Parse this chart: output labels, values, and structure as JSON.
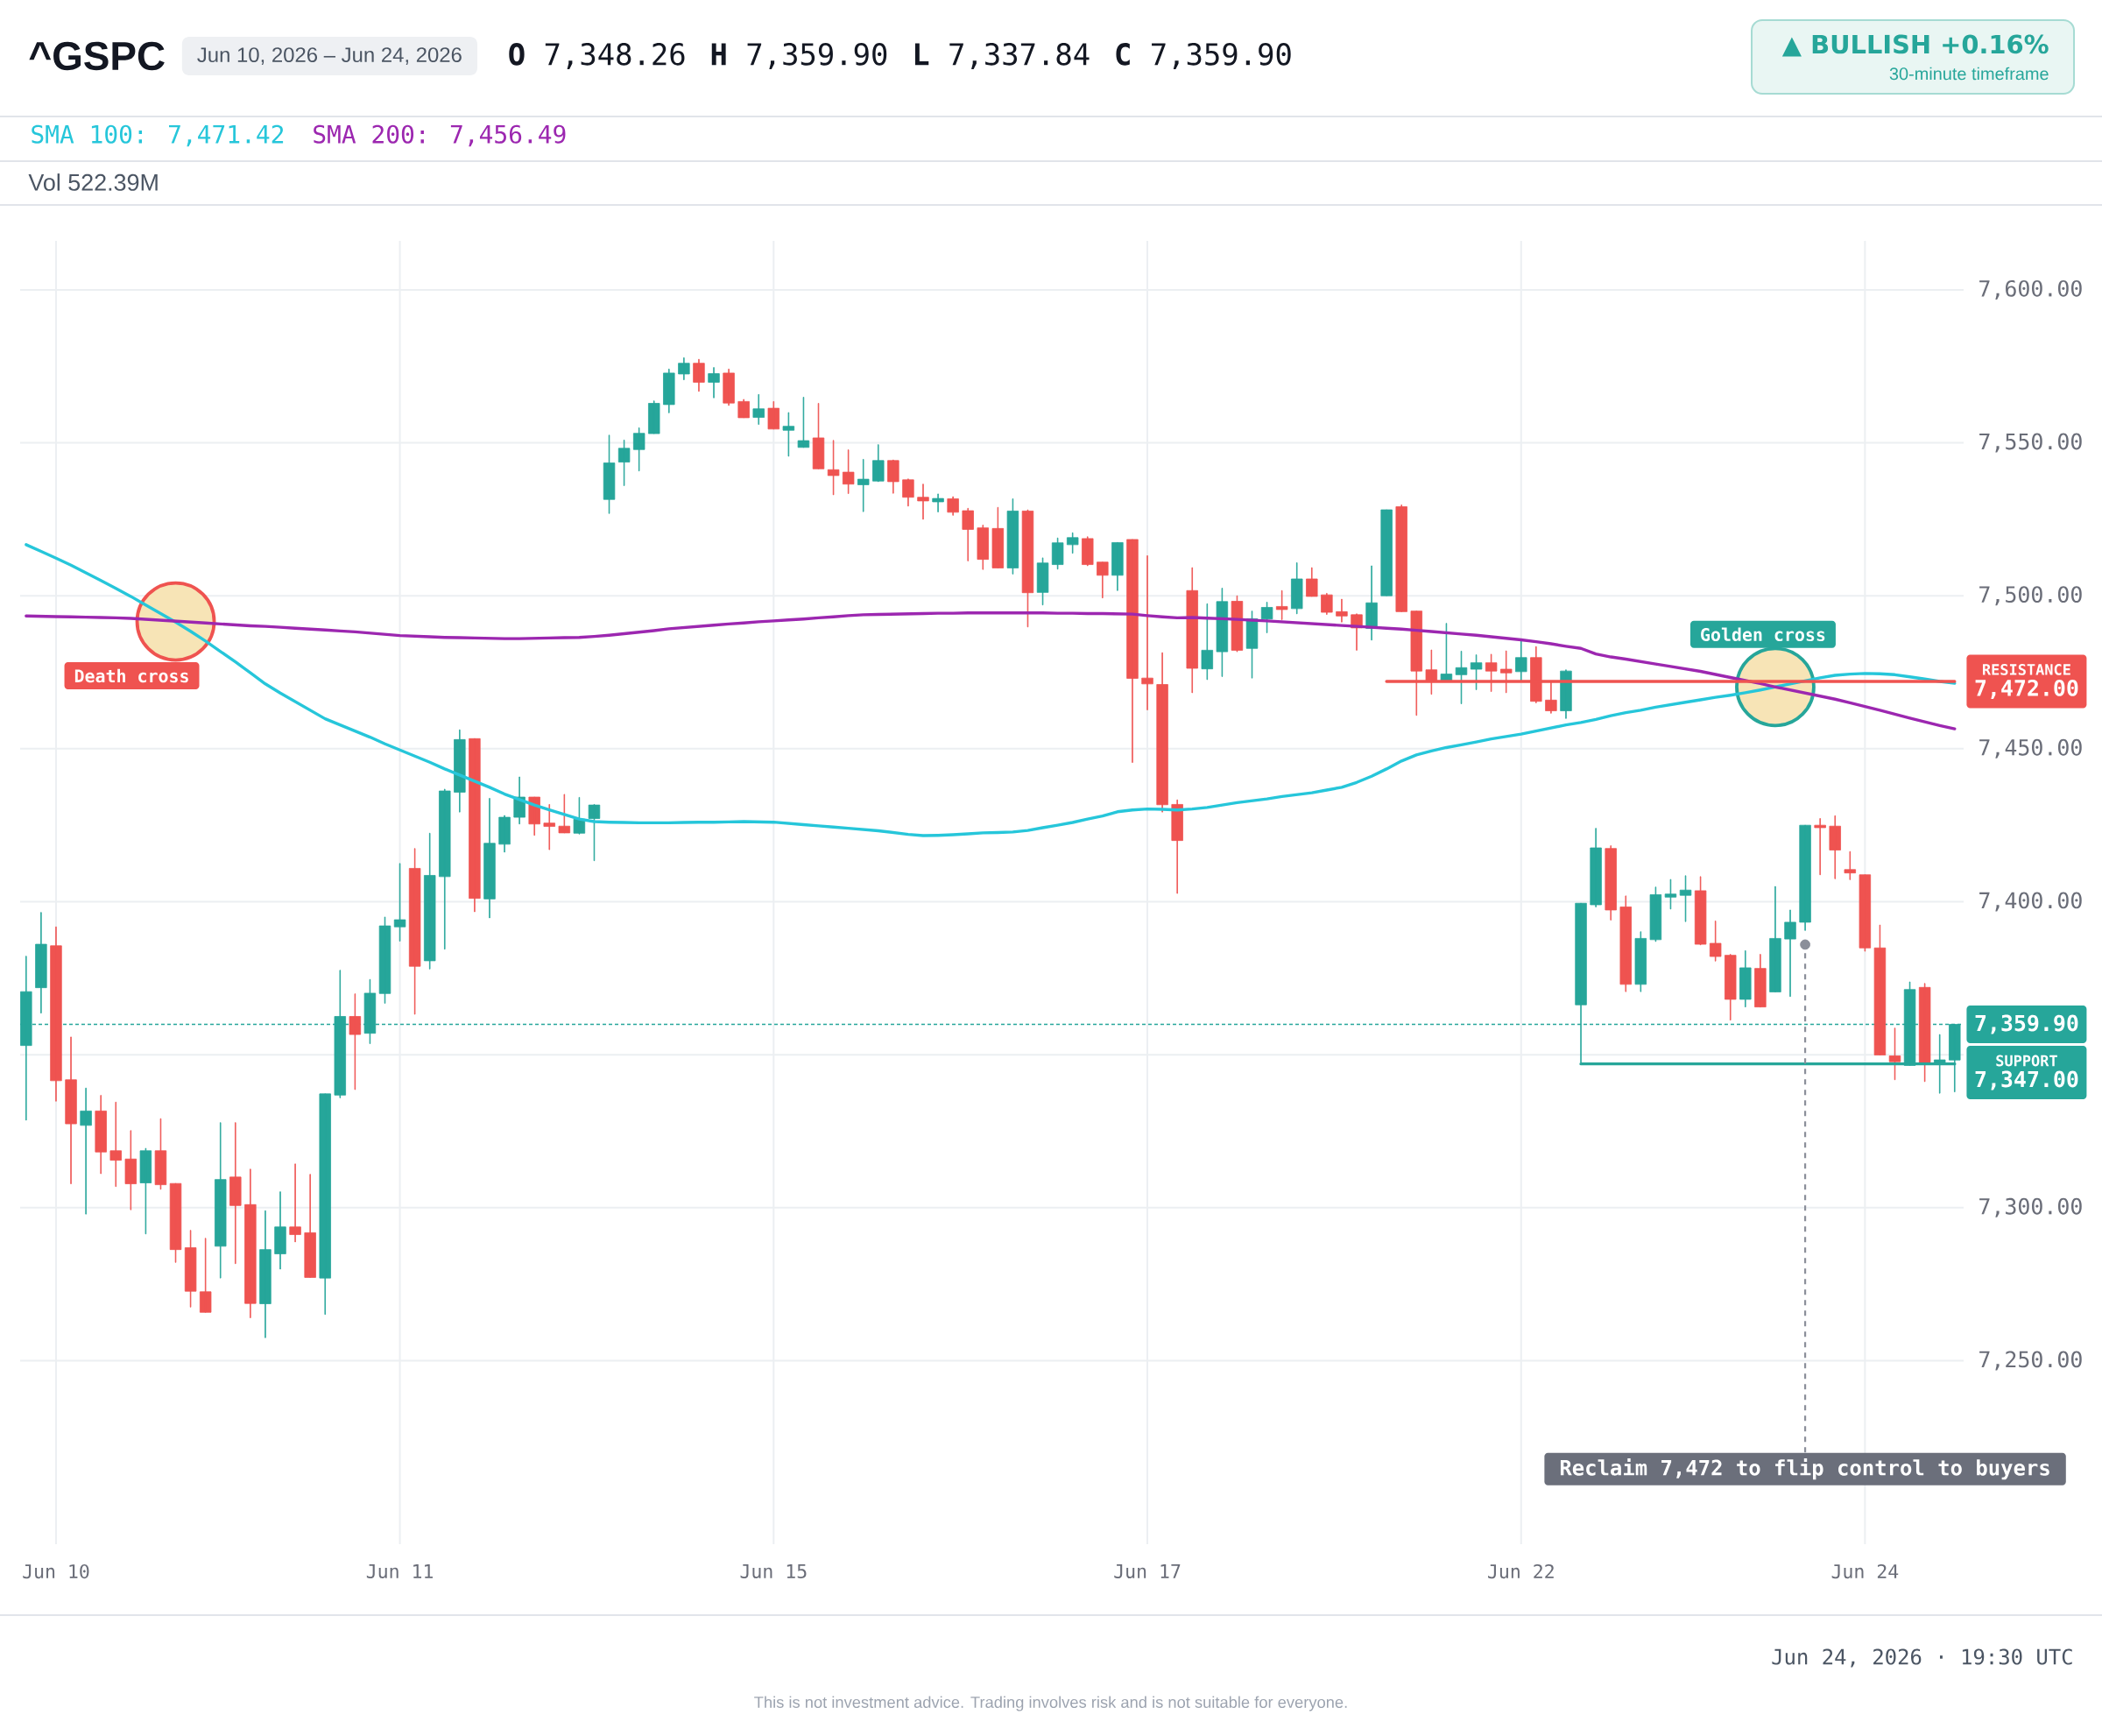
{
  "chart_data": {
    "type": "candlestick",
    "title": "^GSPC",
    "subtitle": "Jun 10, 2026 – Jun 24, 2026",
    "annotations": [
      "**O** 7,348.26",
      "**H** 7,359.90",
      "**L** 7,337.84",
      "**C** 7,359.90",
      "▲ BULLISH +0.16%",
      "30-minute timeframe",
      "Vol 522.39M",
      {
        "text": "Reclaim 7,472 to flip control to buyers",
        "y": 7386
      },
      "Jun 24, 2026 · 19:30 UTC",
      "This is not investment advice. Trading involves risk and is not suitable for everyone."
    ],
    "categories": [
      null,
      null,
      "Jun 10",
      null,
      null,
      null,
      null,
      null,
      null,
      null,
      null,
      null,
      null,
      null,
      null,
      null,
      null,
      null,
      null,
      null,
      null,
      null,
      null,
      null,
      null,
      "Jun 11",
      null,
      null,
      null,
      null,
      null,
      null,
      null,
      null,
      null,
      null,
      null,
      null,
      null,
      null,
      null,
      null,
      null,
      null,
      null,
      null,
      null,
      null,
      null,
      null,
      "Jun 15",
      null,
      null,
      null,
      null,
      null,
      null,
      null,
      null,
      null,
      null,
      null,
      null,
      null,
      null,
      null,
      null,
      null,
      null,
      null,
      null,
      null,
      null,
      null,
      null,
      "Jun 17",
      null,
      null,
      null,
      null,
      null,
      null,
      null,
      null,
      null,
      null,
      null,
      null,
      null,
      null,
      null,
      null,
      null,
      null,
      null,
      null,
      null,
      null,
      null,
      null,
      "Jun 22",
      null,
      null,
      null,
      null,
      null,
      null,
      null,
      null,
      null,
      null,
      null,
      null,
      null,
      null,
      null,
      null,
      null,
      null,
      null,
      null,
      null,
      null,
      "Jun 24",
      null,
      null,
      null,
      null,
      null,
      null
    ],
    "ylim": [
      7190,
      7616
    ],
    "yticks": [
      {
        "value": 7250,
        "label": "7,250.00"
      },
      {
        "value": 7300,
        "label": "7,300.00"
      },
      {
        "value": 7350,
        "label": null
      },
      {
        "value": 7400,
        "label": "7,400.00"
      },
      {
        "value": 7450,
        "label": "7,450.00"
      },
      {
        "value": 7500,
        "label": "7,500.00"
      },
      {
        "value": 7550,
        "label": "7,550.00"
      },
      {
        "value": 7600,
        "label": "7,600.00"
      }
    ],
    "grid": true,
    "legend": "top left",
    "ref_lines": [
      {
        "axis": "y",
        "value": 7359.9,
        "label": "7,359.90",
        "color": "#26a69a",
        "line_style": "dashed"
      }
    ],
    "series": [
      {
        "ohlc": [
          [
            7353.0,
            7382.2,
            7328.6,
            7370.6
          ],
          [
            7371.9,
            7396.5,
            7363.6,
            7386.1
          ],
          [
            7385.6,
            7391.8,
            7334.8,
            7341.5
          ],
          [
            7341.8,
            7355.8,
            7307.8,
            7327.4
          ],
          [
            7326.9,
            7339.1,
            7297.9,
            7331.6
          ],
          [
            7331.6,
            7336.7,
            7311.1,
            7318.2
          ],
          [
            7318.6,
            7334.5,
            7306.9,
            7315.5
          ],
          [
            7315.9,
            7325.2,
            7299.3,
            7307.8
          ],
          [
            7308.1,
            7319.4,
            7291.4,
            7318.6
          ],
          [
            7318.6,
            7329.1,
            7306.0,
            7307.5
          ],
          [
            7307.9,
            7307.9,
            7282.1,
            7286.3
          ],
          [
            7286.9,
            7292.6,
            7267.5,
            7272.7
          ],
          [
            7272.5,
            7290.0,
            7265.8,
            7265.8
          ],
          [
            7287.4,
            7327.8,
            7277.0,
            7309.2
          ],
          [
            7310.0,
            7327.8,
            7281.7,
            7300.7
          ],
          [
            7301.0,
            7312.6,
            7264.0,
            7268.7
          ],
          [
            7268.6,
            7299.0,
            7257.5,
            7286.3
          ],
          [
            7284.9,
            7305.2,
            7279.9,
            7293.7
          ],
          [
            7293.7,
            7314.3,
            7288.8,
            7291.2
          ],
          [
            7291.8,
            7310.9,
            7277.2,
            7277.2
          ],
          [
            7277.0,
            7337.2,
            7265.1,
            7337.2
          ],
          [
            7336.8,
            7377.6,
            7335.9,
            7362.5
          ],
          [
            7362.5,
            7369.9,
            7338.6,
            7356.6
          ],
          [
            7357.0,
            7374.6,
            7353.6,
            7370.1
          ],
          [
            7370.0,
            7395.0,
            7366.8,
            7392.1
          ],
          [
            7391.8,
            7412.5,
            7387.1,
            7394.1
          ],
          [
            7410.9,
            7417.4,
            7363.2,
            7378.9
          ],
          [
            7380.7,
            7422.4,
            7378.0,
            7408.6
          ],
          [
            7408.2,
            7436.8,
            7384.5,
            7436.2
          ],
          [
            7435.8,
            7456.2,
            7429.3,
            7453.0
          ],
          [
            7453.3,
            7453.3,
            7396.7,
            7401.1
          ],
          [
            7400.9,
            7433.8,
            7394.7,
            7419.1
          ],
          [
            7418.8,
            7428.2,
            7416.2,
            7427.6
          ],
          [
            7427.6,
            7440.8,
            7425.4,
            7434.2
          ],
          [
            7434.2,
            7434.2,
            7421.7,
            7425.4
          ],
          [
            7425.7,
            7431.8,
            7417.0,
            7424.6
          ],
          [
            7424.7,
            7435.1,
            7422.5,
            7422.5
          ],
          [
            7422.4,
            7434.1,
            7422.1,
            7427.0
          ],
          [
            7427.2,
            7431.8,
            7413.4,
            7431.6
          ],
          [
            7531.5,
            7552.5,
            7526.9,
            7543.4
          ],
          [
            7543.7,
            7550.9,
            7536.0,
            7548.2
          ],
          [
            7547.8,
            7554.9,
            7540.8,
            7553.1
          ],
          [
            7553.0,
            7563.7,
            7553.0,
            7562.9
          ],
          [
            7562.5,
            7574.1,
            7559.8,
            7572.8
          ],
          [
            7572.5,
            7577.8,
            7570.6,
            7576.0
          ],
          [
            7576.0,
            7577.3,
            7566.8,
            7569.8
          ],
          [
            7569.8,
            7574.6,
            7564.7,
            7572.6
          ],
          [
            7572.8,
            7574.1,
            7562.2,
            7563.0
          ],
          [
            7563.5,
            7564.2,
            7558.2,
            7558.2
          ],
          [
            7558.3,
            7565.8,
            7556.0,
            7561.1
          ],
          [
            7561.3,
            7563.5,
            7554.5,
            7554.5
          ],
          [
            7554.1,
            7559.9,
            7545.6,
            7555.4
          ],
          [
            7548.5,
            7564.9,
            7548.5,
            7550.7
          ],
          [
            7551.6,
            7562.9,
            7541.5,
            7541.5
          ],
          [
            7541.2,
            7550.8,
            7533.0,
            7539.3
          ],
          [
            7540.4,
            7547.7,
            7533.4,
            7536.5
          ],
          [
            7536.3,
            7544.6,
            7527.5,
            7538.1
          ],
          [
            7537.5,
            7549.4,
            7537.3,
            7544.2
          ],
          [
            7544.2,
            7544.4,
            7533.5,
            7537.3
          ],
          [
            7537.9,
            7538.2,
            7529.3,
            7532.2
          ],
          [
            7532.2,
            7536.5,
            7525.0,
            7531.0
          ],
          [
            7530.7,
            7533.3,
            7527.4,
            7531.8
          ],
          [
            7531.7,
            7532.4,
            7526.3,
            7527.3
          ],
          [
            7527.8,
            7528.6,
            7511.4,
            7521.7
          ],
          [
            7522.2,
            7523.1,
            7508.6,
            7511.9
          ],
          [
            7522.0,
            7528.9,
            7509.1,
            7509.1
          ],
          [
            7509.1,
            7531.7,
            7507.1,
            7527.7
          ],
          [
            7527.7,
            7528.1,
            7489.8,
            7501.0
          ],
          [
            7501.1,
            7512.4,
            7497.0,
            7510.7
          ],
          [
            7510.2,
            7518.9,
            7508.7,
            7517.3
          ],
          [
            7516.7,
            7520.6,
            7513.9,
            7519.0
          ],
          [
            7518.7,
            7519.3,
            7509.8,
            7510.2
          ],
          [
            7511.0,
            7511.0,
            7499.3,
            7506.7
          ],
          [
            7506.7,
            7517.4,
            7501.7,
            7517.4
          ],
          [
            7518.4,
            7518.4,
            7445.5,
            7473.0
          ],
          [
            7473.1,
            7513.1,
            7462.7,
            7471.2
          ],
          [
            7471.0,
            7481.4,
            7429.3,
            7431.7
          ],
          [
            7431.8,
            7433.3,
            7402.7,
            7420.0
          ],
          [
            7501.7,
            7509.2,
            7468.3,
            7476.3
          ],
          [
            7476.1,
            7497.4,
            7472.6,
            7482.2
          ],
          [
            7481.7,
            7502.5,
            7473.6,
            7498.1
          ],
          [
            7498.2,
            7500.0,
            7481.7,
            7482.2
          ],
          [
            7482.8,
            7495.0,
            7473.1,
            7492.5
          ],
          [
            7492.4,
            7497.9,
            7487.9,
            7496.2
          ],
          [
            7496.5,
            7501.7,
            7492.2,
            7495.5
          ],
          [
            7495.8,
            7510.8,
            7494.1,
            7505.5
          ],
          [
            7505.5,
            7509.2,
            7499.8,
            7499.8
          ],
          [
            7500.3,
            7500.8,
            7493.9,
            7494.6
          ],
          [
            7494.8,
            7498.9,
            7491.4,
            7493.4
          ],
          [
            7493.8,
            7494.1,
            7482.2,
            7489.5
          ],
          [
            7489.3,
            7509.8,
            7485.5,
            7497.7
          ],
          [
            7500.0,
            7528.1,
            7500.0,
            7528.1
          ],
          [
            7529.1,
            7529.7,
            7494.8,
            7494.8
          ],
          [
            7495.0,
            7495.0,
            7460.9,
            7475.4
          ],
          [
            7475.8,
            7482.3,
            7467.8,
            7471.9
          ],
          [
            7472.3,
            7491.0,
            7472.3,
            7474.4
          ],
          [
            7474.2,
            7481.9,
            7464.7,
            7476.5
          ],
          [
            7476.0,
            7480.7,
            7469.3,
            7478.1
          ],
          [
            7478.1,
            7480.9,
            7468.7,
            7475.4
          ],
          [
            7476.0,
            7482.0,
            7468.3,
            7474.8
          ],
          [
            7475.2,
            7485.5,
            7472.1,
            7479.8
          ],
          [
            7479.8,
            7483.4,
            7465.0,
            7465.5
          ],
          [
            7465.9,
            7471.7,
            7461.6,
            7462.4
          ],
          [
            7462.4,
            7475.8,
            7459.9,
            7475.4
          ],
          [
            7366.3,
            7399.5,
            7347.4,
            7399.5
          ],
          [
            7399.0,
            7424.0,
            7398.3,
            7417.6
          ],
          [
            7417.4,
            7418.3,
            7394.0,
            7397.3
          ],
          [
            7398.3,
            7401.9,
            7370.6,
            7373.0
          ],
          [
            7373.0,
            7390.2,
            7370.6,
            7388.0
          ],
          [
            7387.6,
            7404.8,
            7387.0,
            7402.3
          ],
          [
            7401.5,
            7407.3,
            7397.6,
            7402.5
          ],
          [
            7402.1,
            7408.5,
            7393.5,
            7403.8
          ],
          [
            7403.6,
            7408.2,
            7385.9,
            7386.1
          ],
          [
            7386.4,
            7393.7,
            7380.6,
            7382.1
          ],
          [
            7382.5,
            7382.8,
            7361.3,
            7368.1
          ],
          [
            7368.1,
            7384.0,
            7365.6,
            7378.4
          ],
          [
            7378.2,
            7382.8,
            7365.6,
            7365.6
          ],
          [
            7370.5,
            7405.0,
            7370.5,
            7388.0
          ],
          [
            7387.8,
            7397.3,
            7369.0,
            7393.3
          ],
          [
            7393.3,
            7425.0,
            7390.6,
            7425.0
          ],
          [
            7425.0,
            7427.2,
            7408.8,
            7424.2
          ],
          [
            7424.7,
            7428.1,
            7407.5,
            7416.9
          ],
          [
            7410.5,
            7416.4,
            7407.2,
            7409.4
          ],
          [
            7408.8,
            7408.8,
            7383.8,
            7384.9
          ],
          [
            7384.9,
            7392.4,
            7349.9,
            7349.9
          ],
          [
            7349.6,
            7358.7,
            7341.8,
            7347.7
          ],
          [
            7346.5,
            7373.8,
            7346.5,
            7371.3
          ],
          [
            7372.0,
            7373.3,
            7341.2,
            7347.5
          ],
          [
            7347.2,
            7356.6,
            7337.4,
            7348.3
          ],
          [
            7348.26,
            7359.9,
            7337.84,
            7359.9
          ]
        ],
        "colors": [
          "#26a69a",
          "#26a69a",
          "#ef5350",
          "#ef5350",
          "#26a69a",
          "#ef5350",
          "#ef5350",
          "#ef5350",
          "#26a69a",
          "#ef5350",
          "#ef5350",
          "#ef5350",
          "#ef5350",
          "#26a69a",
          "#ef5350",
          "#ef5350",
          "#26a69a",
          "#26a69a",
          "#ef5350",
          "#ef5350",
          "#26a69a",
          "#26a69a",
          "#ef5350",
          "#26a69a",
          "#26a69a",
          "#26a69a",
          "#ef5350",
          "#26a69a",
          "#26a69a",
          "#26a69a",
          "#ef5350",
          "#26a69a",
          "#26a69a",
          "#26a69a",
          "#ef5350",
          "#ef5350",
          "#ef5350",
          "#26a69a",
          "#26a69a",
          "#26a69a",
          "#26a69a",
          "#26a69a",
          "#26a69a",
          "#26a69a",
          "#26a69a",
          "#ef5350",
          "#26a69a",
          "#ef5350",
          "#ef5350",
          "#26a69a",
          "#ef5350",
          "#26a69a",
          "#26a69a",
          "#ef5350",
          "#ef5350",
          "#ef5350",
          "#26a69a",
          "#26a69a",
          "#ef5350",
          "#ef5350",
          "#ef5350",
          "#26a69a",
          "#ef5350",
          "#ef5350",
          "#ef5350",
          "#ef5350",
          "#26a69a",
          "#ef5350",
          "#26a69a",
          "#26a69a",
          "#26a69a",
          "#ef5350",
          "#ef5350",
          "#26a69a",
          "#ef5350",
          "#ef5350",
          "#ef5350",
          "#ef5350",
          "#ef5350",
          "#26a69a",
          "#26a69a",
          "#ef5350",
          "#26a69a",
          "#26a69a",
          "#ef5350",
          "#26a69a",
          "#ef5350",
          "#ef5350",
          "#ef5350",
          "#ef5350",
          "#26a69a",
          "#26a69a",
          "#ef5350",
          "#ef5350",
          "#ef5350",
          "#26a69a",
          "#26a69a",
          "#26a69a",
          "#ef5350",
          "#ef5350",
          "#26a69a",
          "#ef5350",
          "#ef5350",
          "#26a69a",
          "#26a69a",
          "#26a69a",
          "#ef5350",
          "#ef5350",
          "#26a69a",
          "#26a69a",
          "#26a69a",
          "#26a69a",
          "#ef5350",
          "#ef5350",
          "#ef5350",
          "#26a69a",
          "#ef5350",
          "#26a69a",
          "#26a69a",
          "#26a69a",
          "#ef5350",
          "#ef5350",
          "#ef5350",
          "#ef5350",
          "#ef5350",
          "#ef5350",
          "#26a69a",
          "#ef5350",
          "#26a69a",
          "#26a69a"
        ]
      },
      {
        "type": "scatter",
        "name": "Death cross",
        "color": "#f7e4b6",
        "marker": "circle",
        "values": [
          null,
          null,
          null,
          null,
          null,
          null,
          null,
          null,
          null,
          null,
          7491.6,
          null,
          null,
          null,
          null,
          null,
          null,
          null,
          null,
          null,
          null,
          null,
          null,
          null,
          null,
          null,
          null,
          null,
          null,
          null,
          null,
          null,
          null,
          null,
          null,
          null,
          null,
          null,
          null,
          null,
          null,
          null,
          null,
          null,
          null,
          null,
          null,
          null,
          null,
          null,
          null,
          null,
          null,
          null,
          null,
          null,
          null,
          null,
          null,
          null,
          null,
          null,
          null,
          null,
          null,
          null,
          null,
          null,
          null,
          null,
          null,
          null,
          null,
          null,
          null,
          null,
          null,
          null,
          null,
          null,
          null,
          null,
          null,
          null,
          null,
          null,
          null,
          null,
          null,
          null,
          null,
          null,
          null,
          null,
          null,
          null,
          null,
          null,
          null,
          null,
          null,
          null,
          null,
          null,
          null,
          null,
          null,
          null,
          null,
          null,
          null,
          null,
          null,
          null,
          null,
          null,
          null,
          null,
          null,
          null,
          null,
          null,
          null,
          null,
          null,
          null,
          null,
          null,
          null,
          null
        ]
      },
      {
        "type": "scatter",
        "name": "Golden cross",
        "color": "#f7e4b6",
        "marker": "circle",
        "values": [
          null,
          null,
          null,
          null,
          null,
          null,
          null,
          null,
          null,
          null,
          null,
          null,
          null,
          null,
          null,
          null,
          null,
          null,
          null,
          null,
          null,
          null,
          null,
          null,
          null,
          null,
          null,
          null,
          null,
          null,
          null,
          null,
          null,
          null,
          null,
          null,
          null,
          null,
          null,
          null,
          null,
          null,
          null,
          null,
          null,
          null,
          null,
          null,
          null,
          null,
          null,
          null,
          null,
          null,
          null,
          null,
          null,
          null,
          null,
          null,
          null,
          null,
          null,
          null,
          null,
          null,
          null,
          null,
          null,
          null,
          null,
          null,
          null,
          null,
          null,
          null,
          null,
          null,
          null,
          null,
          null,
          null,
          null,
          null,
          null,
          null,
          null,
          null,
          null,
          null,
          null,
          null,
          null,
          null,
          null,
          null,
          null,
          null,
          null,
          null,
          null,
          null,
          null,
          null,
          null,
          null,
          null,
          null,
          null,
          null,
          null,
          null,
          null,
          null,
          null,
          null,
          null,
          7470.2,
          null,
          null,
          null,
          null,
          null,
          null,
          null,
          null,
          null,
          null,
          null,
          null
        ]
      },
      {
        "type": "line",
        "name": "SMA 100: 7,471.42",
        "color": "#26c6da",
        "values": [
          7516.7,
          7514.5,
          7512.3,
          7510.0,
          7507.5,
          7505.0,
          7502.4,
          7499.8,
          7497.0,
          7494.2,
          7491.4,
          7488.4,
          7485.2,
          7481.8,
          7478.4,
          7474.8,
          7471.2,
          7468.2,
          7465.4,
          7462.6,
          7459.8,
          7457.8,
          7455.8,
          7453.8,
          7451.6,
          7449.6,
          7447.6,
          7445.6,
          7443.4,
          7441.4,
          7439.4,
          7437.4,
          7435.2,
          7433.4,
          7431.6,
          7430.0,
          7428.5,
          7427.0,
          7426.2,
          7426.0,
          7425.9,
          7425.8,
          7425.8,
          7425.8,
          7425.9,
          7426.0,
          7426.0,
          7426.1,
          7426.2,
          7426.1,
          7426.0,
          7425.6,
          7425.2,
          7424.8,
          7424.4,
          7424.0,
          7423.6,
          7423.2,
          7422.6,
          7422.0,
          7421.6,
          7421.7,
          7421.9,
          7422.2,
          7422.5,
          7422.6,
          7422.8,
          7423.3,
          7424.2,
          7425.0,
          7425.9,
          7427.0,
          7428.0,
          7429.4,
          7430.0,
          7430.3,
          7430.2,
          7430.0,
          7430.3,
          7430.8,
          7431.6,
          7432.4,
          7433.0,
          7433.6,
          7434.4,
          7435.0,
          7435.6,
          7436.5,
          7437.4,
          7439.0,
          7441.0,
          7443.4,
          7446.0,
          7448.0,
          7449.3,
          7450.4,
          7451.3,
          7452.2,
          7453.2,
          7454.0,
          7454.8,
          7455.8,
          7456.8,
          7457.8,
          7458.6,
          7459.6,
          7460.8,
          7461.8,
          7462.6,
          7463.6,
          7464.4,
          7465.2,
          7466.0,
          7466.8,
          7467.5,
          7468.3,
          7469.2,
          7470.2,
          7471.2,
          7472.2,
          7473.2,
          7474.0,
          7474.4,
          7474.6,
          7474.5,
          7474.2,
          7473.5,
          7472.8,
          7472.0,
          7471.4
        ]
      },
      {
        "type": "line",
        "name": "SMA 200: 7,456.49",
        "color": "#9c27b0",
        "values": [
          7493.4,
          7493.3,
          7493.2,
          7493.1,
          7493.0,
          7492.9,
          7492.8,
          7492.6,
          7492.3,
          7492.0,
          7491.7,
          7491.4,
          7491.1,
          7490.8,
          7490.5,
          7490.2,
          7490.0,
          7489.7,
          7489.4,
          7489.1,
          7488.8,
          7488.5,
          7488.2,
          7487.8,
          7487.4,
          7487.0,
          7486.8,
          7486.6,
          7486.4,
          7486.3,
          7486.2,
          7486.1,
          7486.0,
          7486.0,
          7486.1,
          7486.2,
          7486.3,
          7486.4,
          7486.7,
          7487.1,
          7487.6,
          7488.1,
          7488.6,
          7489.2,
          7489.6,
          7490.0,
          7490.4,
          7490.8,
          7491.1,
          7491.5,
          7491.8,
          7492.1,
          7492.4,
          7492.8,
          7493.1,
          7493.5,
          7493.8,
          7493.9,
          7494.0,
          7494.1,
          7494.2,
          7494.3,
          7494.3,
          7494.4,
          7494.4,
          7494.4,
          7494.4,
          7494.4,
          7494.4,
          7494.3,
          7494.3,
          7494.2,
          7494.2,
          7494.1,
          7494.0,
          7493.5,
          7493.1,
          7492.8,
          7492.9,
          7492.7,
          7492.5,
          7492.3,
          7492.0,
          7491.8,
          7491.5,
          7491.2,
          7490.9,
          7490.6,
          7490.3,
          7490.0,
          7489.7,
          7489.4,
          7489.1,
          7488.7,
          7488.3,
          7487.9,
          7487.5,
          7487.1,
          7486.6,
          7486.1,
          7485.6,
          7485.0,
          7484.3,
          7483.5,
          7482.8,
          7481.0,
          7480.0,
          7479.3,
          7478.5,
          7477.7,
          7476.9,
          7476.1,
          7475.3,
          7474.3,
          7473.3,
          7472.3,
          7471.3,
          7470.2,
          7469.2,
          7468.2,
          7467.2,
          7466.2,
          7465.0,
          7463.8,
          7462.6,
          7461.3,
          7460.0,
          7458.8,
          7457.6,
          7456.5
        ]
      },
      {
        "type": "line",
        "name": "RESISTANCE",
        "color": "#ef5350",
        "values": [
          null,
          null,
          null,
          null,
          null,
          null,
          null,
          null,
          null,
          null,
          null,
          null,
          null,
          null,
          null,
          null,
          null,
          null,
          null,
          null,
          null,
          null,
          null,
          null,
          null,
          null,
          null,
          null,
          null,
          null,
          null,
          null,
          null,
          null,
          null,
          null,
          null,
          null,
          null,
          null,
          null,
          null,
          null,
          null,
          null,
          null,
          null,
          null,
          null,
          null,
          null,
          null,
          null,
          null,
          null,
          null,
          null,
          null,
          null,
          null,
          null,
          null,
          null,
          null,
          null,
          null,
          null,
          null,
          null,
          null,
          null,
          null,
          null,
          null,
          null,
          null,
          null,
          null,
          null,
          null,
          null,
          null,
          null,
          null,
          null,
          null,
          null,
          null,
          null,
          null,
          null,
          7472,
          7472,
          7472,
          7472,
          7472,
          7472,
          7472,
          7472,
          7472,
          7472,
          7472,
          7472,
          7472,
          7472,
          7472,
          7472,
          7472,
          7472,
          7472,
          7472,
          7472,
          7472,
          7472,
          7472,
          7472,
          7472,
          7472,
          7472,
          7472,
          7472,
          7472,
          7472,
          7472,
          7472,
          7472,
          7472,
          7472,
          7472,
          7472
        ],
        "value_labels": [
          null,
          null,
          null,
          null,
          null,
          null,
          null,
          null,
          null,
          null,
          null,
          null,
          null,
          null,
          null,
          null,
          null,
          null,
          null,
          null,
          null,
          null,
          null,
          null,
          null,
          null,
          null,
          null,
          null,
          null,
          null,
          null,
          null,
          null,
          null,
          null,
          null,
          null,
          null,
          null,
          null,
          null,
          null,
          null,
          null,
          null,
          null,
          null,
          null,
          null,
          null,
          null,
          null,
          null,
          null,
          null,
          null,
          null,
          null,
          null,
          null,
          null,
          null,
          null,
          null,
          null,
          null,
          null,
          null,
          null,
          null,
          null,
          null,
          null,
          null,
          null,
          null,
          null,
          null,
          null,
          null,
          null,
          null,
          null,
          null,
          null,
          null,
          null,
          null,
          null,
          null,
          null,
          null,
          null,
          null,
          null,
          null,
          null,
          null,
          null,
          null,
          null,
          null,
          null,
          null,
          null,
          null,
          null,
          null,
          null,
          null,
          null,
          null,
          null,
          null,
          null,
          null,
          null,
          null,
          null,
          null,
          null,
          null,
          null,
          null,
          null,
          null,
          null,
          null,
          "7,472.00"
        ]
      },
      {
        "type": "line",
        "name": "SUPPORT",
        "color": "#26a69a",
        "values": [
          null,
          null,
          null,
          null,
          null,
          null,
          null,
          null,
          null,
          null,
          null,
          null,
          null,
          null,
          null,
          null,
          null,
          null,
          null,
          null,
          null,
          null,
          null,
          null,
          null,
          null,
          null,
          null,
          null,
          null,
          null,
          null,
          null,
          null,
          null,
          null,
          null,
          null,
          null,
          null,
          null,
          null,
          null,
          null,
          null,
          null,
          null,
          null,
          null,
          null,
          null,
          null,
          null,
          null,
          null,
          null,
          null,
          null,
          null,
          null,
          null,
          null,
          null,
          null,
          null,
          null,
          null,
          null,
          null,
          null,
          null,
          null,
          null,
          null,
          null,
          null,
          null,
          null,
          null,
          null,
          null,
          null,
          null,
          null,
          null,
          null,
          null,
          null,
          null,
          null,
          null,
          null,
          null,
          null,
          null,
          null,
          null,
          null,
          null,
          null,
          null,
          null,
          null,
          null,
          7347,
          7347,
          7347,
          7347,
          7347,
          7347,
          7347,
          7347,
          7347,
          7347,
          7347,
          7347,
          7347,
          7347,
          7347,
          7347,
          7347,
          7347,
          7347,
          7347,
          7347,
          7347,
          7347,
          7347,
          7347,
          7347
        ],
        "value_labels": [
          null,
          null,
          null,
          null,
          null,
          null,
          null,
          null,
          null,
          null,
          null,
          null,
          null,
          null,
          null,
          null,
          null,
          null,
          null,
          null,
          null,
          null,
          null,
          null,
          null,
          null,
          null,
          null,
          null,
          null,
          null,
          null,
          null,
          null,
          null,
          null,
          null,
          null,
          null,
          null,
          null,
          null,
          null,
          null,
          null,
          null,
          null,
          null,
          null,
          null,
          null,
          null,
          null,
          null,
          null,
          null,
          null,
          null,
          null,
          null,
          null,
          null,
          null,
          null,
          null,
          null,
          null,
          null,
          null,
          null,
          null,
          null,
          null,
          null,
          null,
          null,
          null,
          null,
          null,
          null,
          null,
          null,
          null,
          null,
          null,
          null,
          null,
          null,
          null,
          null,
          null,
          null,
          null,
          null,
          null,
          null,
          null,
          null,
          null,
          null,
          null,
          null,
          null,
          null,
          null,
          null,
          null,
          null,
          null,
          null,
          null,
          null,
          null,
          null,
          null,
          null,
          null,
          null,
          null,
          null,
          null,
          null,
          null,
          null,
          null,
          null,
          null,
          null,
          null,
          "7,347.00"
        ]
      },
      {
        "type": "scatter",
        "color": "#8b8f9a",
        "marker": "circle",
        "values": [
          null,
          null,
          null,
          null,
          null,
          null,
          null,
          null,
          null,
          null,
          null,
          null,
          null,
          null,
          null,
          null,
          null,
          null,
          null,
          null,
          null,
          null,
          null,
          null,
          null,
          null,
          null,
          null,
          null,
          null,
          null,
          null,
          null,
          null,
          null,
          null,
          null,
          null,
          null,
          null,
          null,
          null,
          null,
          null,
          null,
          null,
          null,
          null,
          null,
          null,
          null,
          null,
          null,
          null,
          null,
          null,
          null,
          null,
          null,
          null,
          null,
          null,
          null,
          null,
          null,
          null,
          null,
          null,
          null,
          null,
          null,
          null,
          null,
          null,
          null,
          null,
          null,
          null,
          null,
          null,
          null,
          null,
          null,
          null,
          null,
          null,
          null,
          null,
          null,
          null,
          null,
          null,
          null,
          null,
          null,
          null,
          null,
          null,
          null,
          null,
          null,
          null,
          null,
          null,
          null,
          null,
          null,
          null,
          null,
          null,
          null,
          null,
          null,
          null,
          null,
          null,
          null,
          null,
          null,
          7386,
          null,
          null,
          null,
          null,
          null,
          null,
          null,
          null,
          null,
          null
        ]
      }
    ]
  }
}
